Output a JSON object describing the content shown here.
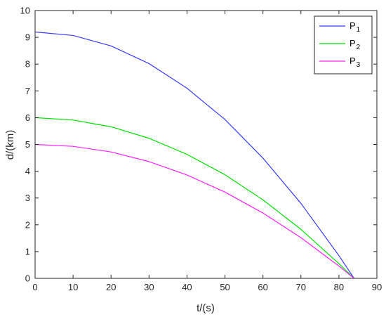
{
  "chart_data": {
    "type": "line",
    "xlabel": "t/(s)",
    "ylabel": "d/(km)",
    "xlim": [
      0,
      90
    ],
    "ylim": [
      0,
      10
    ],
    "xticks": [
      0,
      10,
      20,
      30,
      40,
      50,
      60,
      70,
      80,
      90
    ],
    "yticks": [
      0,
      1,
      2,
      3,
      4,
      5,
      6,
      7,
      8,
      9,
      10
    ],
    "grid": false,
    "legend_position": "top-right",
    "x": [
      0,
      10,
      20,
      30,
      40,
      50,
      60,
      70,
      80,
      84
    ],
    "series": [
      {
        "name": "P",
        "subscript": "1",
        "color": "#3b3bff",
        "values": [
          9.2,
          9.07,
          8.68,
          8.02,
          7.1,
          5.93,
          4.49,
          2.8,
          0.85,
          0
        ]
      },
      {
        "name": "P",
        "subscript": "2",
        "color": "#00e000",
        "values": [
          6.0,
          5.91,
          5.66,
          5.23,
          4.63,
          3.87,
          2.93,
          1.83,
          0.55,
          0
        ]
      },
      {
        "name": "P",
        "subscript": "3",
        "color": "#ff22ff",
        "values": [
          5.0,
          4.93,
          4.72,
          4.36,
          3.86,
          3.22,
          2.44,
          1.52,
          0.46,
          0
        ]
      }
    ]
  }
}
